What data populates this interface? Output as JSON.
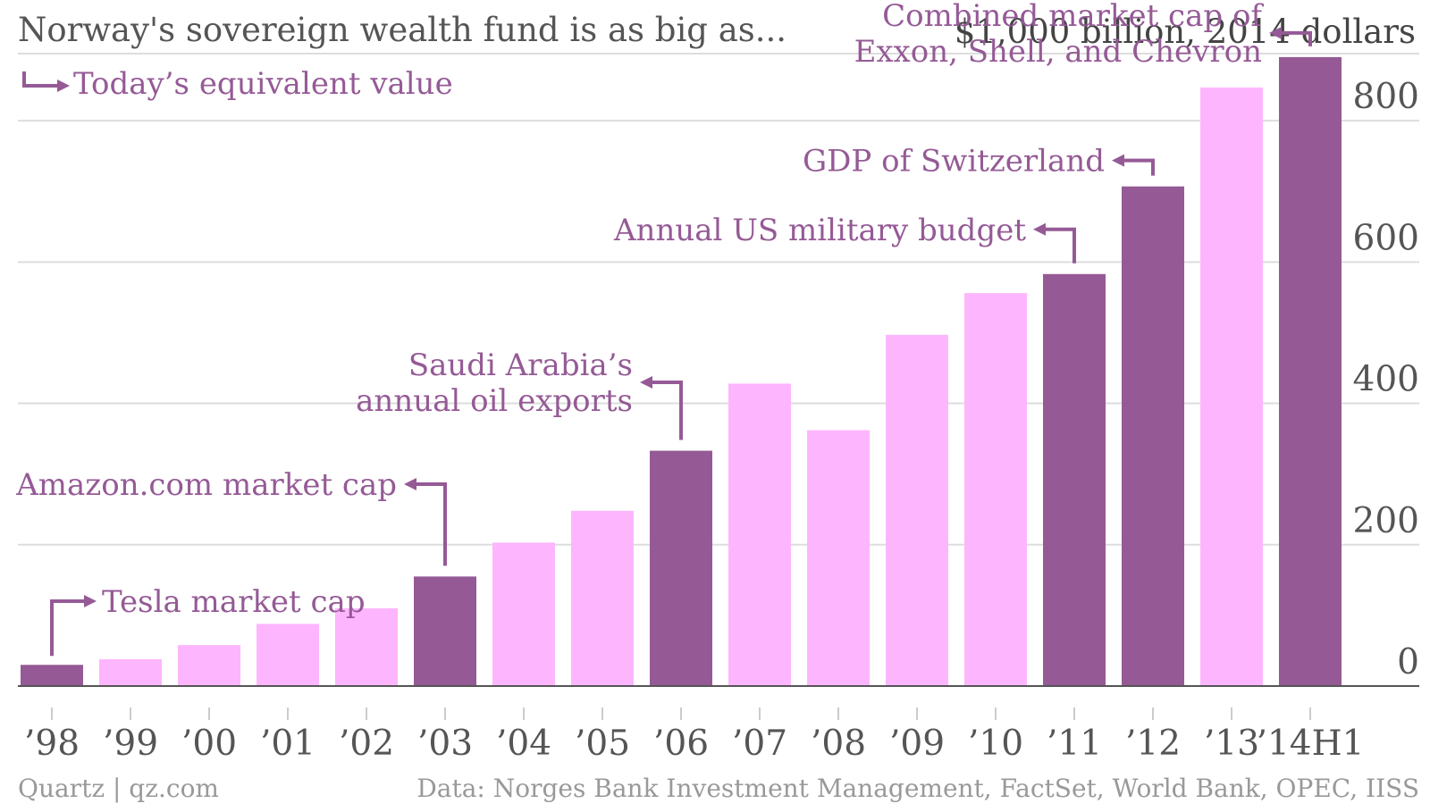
{
  "chart_data": {
    "type": "bar",
    "title": "Norway's sovereign wealth fund is as big as...",
    "unit_label": "$1,000 billion, 2014 dollars",
    "legend_note": "Today’s equivalent value",
    "categories": [
      "’98",
      "’99",
      "’00",
      "’01",
      "’02",
      "’03",
      "’04",
      "’05",
      "’06",
      "’07",
      "’08",
      "’09",
      "’10",
      "’11",
      "’12",
      "’13",
      "’14H1"
    ],
    "values": [
      30,
      38,
      58,
      88,
      110,
      155,
      203,
      248,
      333,
      428,
      362,
      497,
      556,
      583,
      707,
      847,
      890
    ],
    "highlighted": [
      true,
      false,
      false,
      false,
      false,
      true,
      false,
      false,
      true,
      false,
      false,
      false,
      false,
      true,
      true,
      false,
      true
    ],
    "colors": {
      "highlight": "#955a96",
      "normal": "#fdb6fd",
      "annotation": "#955a96",
      "grid": "#dddddd",
      "axis": "#555555",
      "text": "#555555"
    },
    "ylim": [
      0,
      900
    ],
    "yticks": [
      0,
      200,
      400,
      600,
      800
    ],
    "grid": true,
    "yaxis_position": "right",
    "annotations": [
      {
        "category_index": 0,
        "lines": [
          "Tesla market cap"
        ]
      },
      {
        "category_index": 5,
        "lines": [
          "Amazon.com market cap"
        ]
      },
      {
        "category_index": 8,
        "lines": [
          "Saudi Arabia’s",
          "annual oil exports"
        ]
      },
      {
        "category_index": 13,
        "lines": [
          "Annual US military budget"
        ]
      },
      {
        "category_index": 14,
        "lines": [
          "GDP of Switzerland"
        ]
      },
      {
        "category_index": 16,
        "lines": [
          "Combined market cap of",
          "Exxon, Shell, and Chevron"
        ]
      }
    ]
  },
  "footer": {
    "source": "Quartz | qz.com",
    "data_credit": "Data: Norges Bank Investment Management, FactSet, World Bank, OPEC, IISS"
  }
}
